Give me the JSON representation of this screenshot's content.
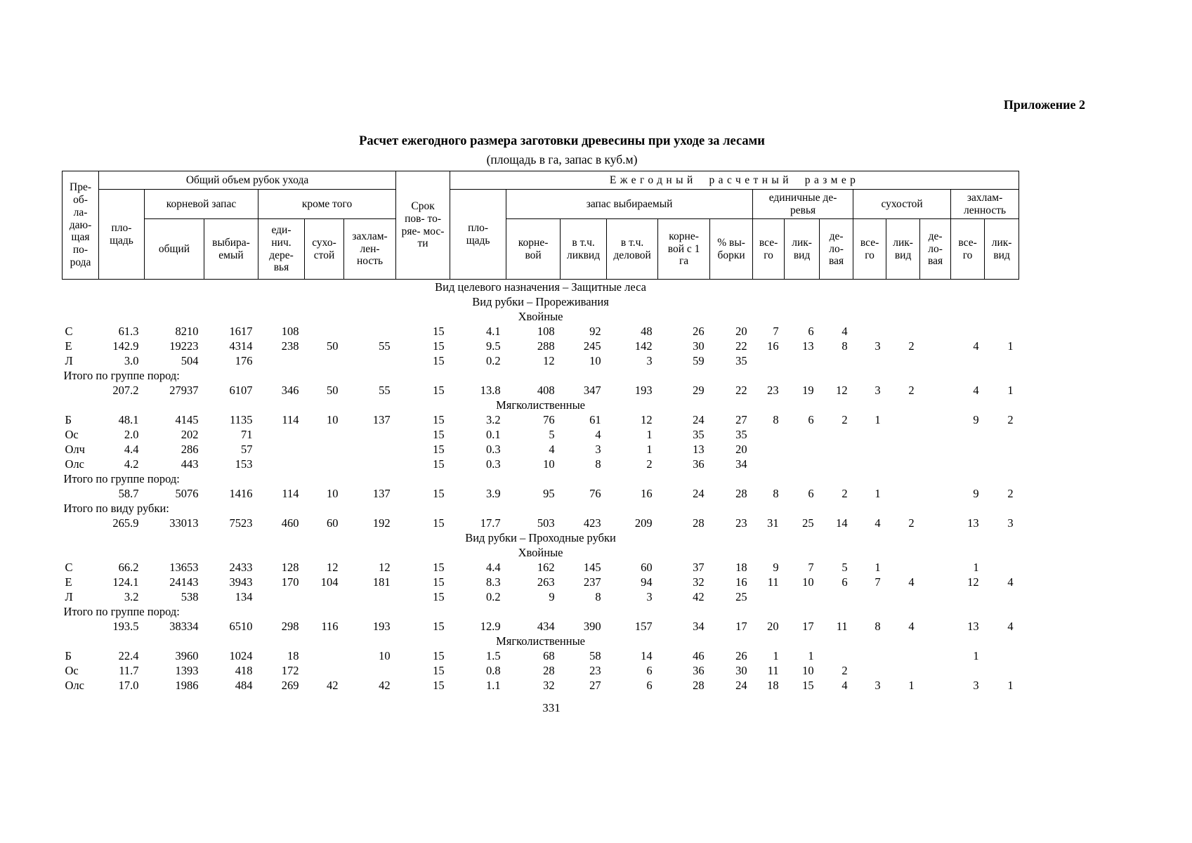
{
  "page": {
    "annex": "Приложение 2",
    "title": "Расчет ежегодного размера заготовки древесины при уходе за лесами",
    "subtitle": "(площадь в га, запас в куб.м)",
    "page_number": "331"
  },
  "table": {
    "header": {
      "species": "Пре-\nоб-\nла-\nдаю-\nщая\nпо-\nрода",
      "total_volume": "Общий объем рубок ухода",
      "period": "Срок\nпов- то-\nряе- мос-\nти",
      "annual_size": "Ежегодный расчетный размер",
      "area1": "пло-\nщадь",
      "root_stock": "корневой запас",
      "besides": "кроме того",
      "area2": "пло-\nщадь",
      "stock_selected": "запас выбираемый",
      "single_trees_group": "единичные де-\nревья",
      "deadwood_group": "сухостой",
      "debris_group": "захлам-\nленность",
      "col_total": "общий",
      "col_selected": "выбира-\nемый",
      "col_single": "еди-\nнич.\nдере-\nвья",
      "col_dead": "сухо-\nстой",
      "col_debris": "захлам-\nлен-\nность",
      "col_root": "корне-\nвой",
      "col_incl_liquid": "в т.ч.\nликвид",
      "col_incl_business": "в т.ч.\nделовой",
      "col_root_per_ha": "корне-\nвой с 1\nга",
      "col_pct": "% вы-\nборки",
      "col_vsego": "все-\nго",
      "col_likvid": "лик-\nвид",
      "col_delovaya": "де-\nло-\nвая"
    },
    "rows": [
      {
        "type": "section",
        "text": "Вид целевого назначения – Защитные леса"
      },
      {
        "type": "section",
        "text": "Вид рубки –  Прореживания"
      },
      {
        "type": "section",
        "text": "Хвойные"
      },
      {
        "type": "data",
        "cells": [
          "С",
          "61.3",
          "8210",
          "1617",
          "108",
          "",
          "",
          "15",
          "4.1",
          "108",
          "92",
          "48",
          "26",
          "20",
          "7",
          "6",
          "4",
          "",
          "",
          "",
          "",
          ""
        ]
      },
      {
        "type": "data",
        "cells": [
          "Е",
          "142.9",
          "19223",
          "4314",
          "238",
          "50",
          "55",
          "15",
          "9.5",
          "288",
          "245",
          "142",
          "30",
          "22",
          "16",
          "13",
          "8",
          "3",
          "2",
          "",
          "4",
          "1"
        ]
      },
      {
        "type": "data",
        "cells": [
          "Л",
          "3.0",
          "504",
          "176",
          "",
          "",
          "",
          "15",
          "0.2",
          "12",
          "10",
          "3",
          "59",
          "35",
          "",
          "",
          "",
          "",
          "",
          "",
          "",
          ""
        ]
      },
      {
        "type": "label",
        "text": "Итого по группе пород:"
      },
      {
        "type": "data",
        "cells": [
          "",
          "207.2",
          "27937",
          "6107",
          "346",
          "50",
          "55",
          "15",
          "13.8",
          "408",
          "347",
          "193",
          "29",
          "22",
          "23",
          "19",
          "12",
          "3",
          "2",
          "",
          "4",
          "1"
        ]
      },
      {
        "type": "section",
        "text": "Мягколиственные"
      },
      {
        "type": "data",
        "cells": [
          "Б",
          "48.1",
          "4145",
          "1135",
          "114",
          "10",
          "137",
          "15",
          "3.2",
          "76",
          "61",
          "12",
          "24",
          "27",
          "8",
          "6",
          "2",
          "1",
          "",
          "",
          "9",
          "2"
        ]
      },
      {
        "type": "data",
        "cells": [
          "Ос",
          "2.0",
          "202",
          "71",
          "",
          "",
          "",
          "15",
          "0.1",
          "5",
          "4",
          "1",
          "35",
          "35",
          "",
          "",
          "",
          "",
          "",
          "",
          "",
          ""
        ]
      },
      {
        "type": "data",
        "cells": [
          "Олч",
          "4.4",
          "286",
          "57",
          "",
          "",
          "",
          "15",
          "0.3",
          "4",
          "3",
          "1",
          "13",
          "20",
          "",
          "",
          "",
          "",
          "",
          "",
          "",
          ""
        ]
      },
      {
        "type": "data",
        "cells": [
          "Олс",
          "4.2",
          "443",
          "153",
          "",
          "",
          "",
          "15",
          "0.3",
          "10",
          "8",
          "2",
          "36",
          "34",
          "",
          "",
          "",
          "",
          "",
          "",
          "",
          ""
        ]
      },
      {
        "type": "label",
        "text": "Итого по группе пород:"
      },
      {
        "type": "data",
        "cells": [
          "",
          "58.7",
          "5076",
          "1416",
          "114",
          "10",
          "137",
          "15",
          "3.9",
          "95",
          "76",
          "16",
          "24",
          "28",
          "8",
          "6",
          "2",
          "1",
          "",
          "",
          "9",
          "2"
        ]
      },
      {
        "type": "label",
        "text": "Итого по виду рубки:"
      },
      {
        "type": "data",
        "cells": [
          "",
          "265.9",
          "33013",
          "7523",
          "460",
          "60",
          "192",
          "15",
          "17.7",
          "503",
          "423",
          "209",
          "28",
          "23",
          "31",
          "25",
          "14",
          "4",
          "2",
          "",
          "13",
          "3"
        ]
      },
      {
        "type": "section",
        "text": "Вид рубки –  Проходные рубки"
      },
      {
        "type": "section",
        "text": "Хвойные"
      },
      {
        "type": "data",
        "cells": [
          "С",
          "66.2",
          "13653",
          "2433",
          "128",
          "12",
          "12",
          "15",
          "4.4",
          "162",
          "145",
          "60",
          "37",
          "18",
          "9",
          "7",
          "5",
          "1",
          "",
          "",
          "1",
          ""
        ]
      },
      {
        "type": "data",
        "cells": [
          "Е",
          "124.1",
          "24143",
          "3943",
          "170",
          "104",
          "181",
          "15",
          "8.3",
          "263",
          "237",
          "94",
          "32",
          "16",
          "11",
          "10",
          "6",
          "7",
          "4",
          "",
          "12",
          "4"
        ]
      },
      {
        "type": "data",
        "cells": [
          "Л",
          "3.2",
          "538",
          "134",
          "",
          "",
          "",
          "15",
          "0.2",
          "9",
          "8",
          "3",
          "42",
          "25",
          "",
          "",
          "",
          "",
          "",
          "",
          "",
          ""
        ]
      },
      {
        "type": "label",
        "text": "Итого по группе пород:"
      },
      {
        "type": "data",
        "cells": [
          "",
          "193.5",
          "38334",
          "6510",
          "298",
          "116",
          "193",
          "15",
          "12.9",
          "434",
          "390",
          "157",
          "34",
          "17",
          "20",
          "17",
          "11",
          "8",
          "4",
          "",
          "13",
          "4"
        ]
      },
      {
        "type": "section",
        "text": "Мягколиственные"
      },
      {
        "type": "data",
        "cells": [
          "Б",
          "22.4",
          "3960",
          "1024",
          "18",
          "",
          "10",
          "15",
          "1.5",
          "68",
          "58",
          "14",
          "46",
          "26",
          "1",
          "1",
          "",
          "",
          "",
          "",
          "1",
          ""
        ]
      },
      {
        "type": "data",
        "cells": [
          "Ос",
          "11.7",
          "1393",
          "418",
          "172",
          "",
          "",
          "15",
          "0.8",
          "28",
          "23",
          "6",
          "36",
          "30",
          "11",
          "10",
          "2",
          "",
          "",
          "",
          "",
          ""
        ]
      },
      {
        "type": "data",
        "cells": [
          "Олс",
          "17.0",
          "1986",
          "484",
          "269",
          "42",
          "42",
          "15",
          "1.1",
          "32",
          "27",
          "6",
          "28",
          "24",
          "18",
          "15",
          "4",
          "3",
          "1",
          "",
          "3",
          "1"
        ]
      }
    ]
  }
}
